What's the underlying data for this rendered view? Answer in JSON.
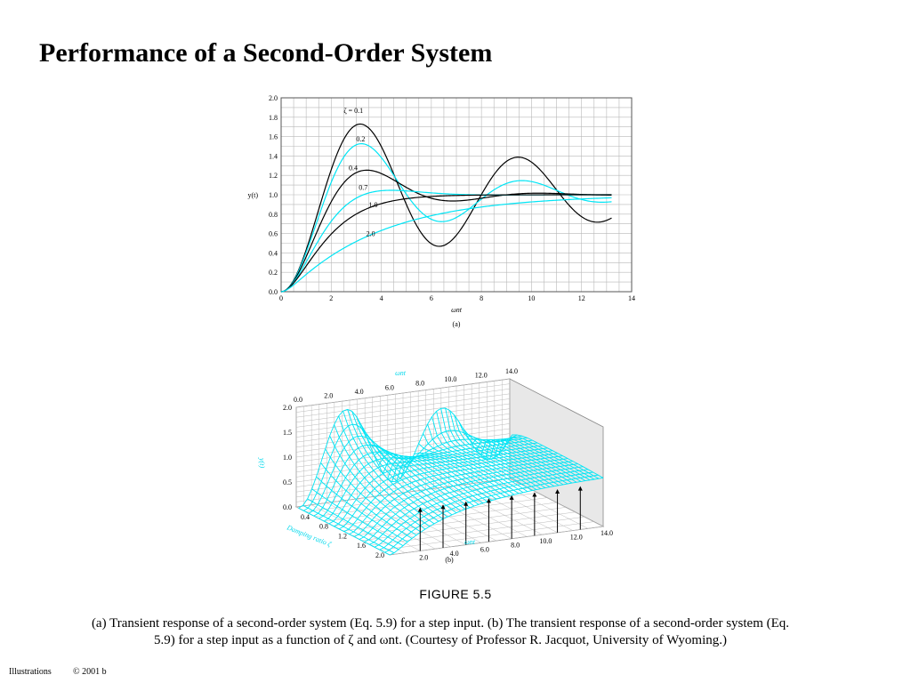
{
  "slide": {
    "title": "Performance of a Second-Order System"
  },
  "figure": {
    "label": "FIGURE 5.5",
    "caption": "(a) Transient response of a second-order system (Eq. 5.9) for a step input. (b) The transient response of a second-order system (Eq. 5.9) for a step input as a function of ζ and ωnt. (Courtesy of Professor R. Jacquot, University of Wyoming.)"
  },
  "footer": {
    "left": "Illustrations",
    "right": "© 2001 b"
  },
  "colors": {
    "black_curve": "#000000",
    "cyan_curve": "#00e5f5",
    "grid": "#b8b8b8"
  },
  "chart_data": [
    {
      "type": "line",
      "panel_label": "(a)",
      "xlabel": "ωnt",
      "ylabel": "y(t)",
      "xlim": [
        0,
        14
      ],
      "ylim": [
        0,
        2.0
      ],
      "x_ticks": [
        "0",
        "2",
        "4",
        "6",
        "8",
        "10",
        "12",
        "14"
      ],
      "y_ticks": [
        "0.0",
        "0.2",
        "0.4",
        "0.6",
        "0.8",
        "1.0",
        "1.2",
        "1.4",
        "1.6",
        "1.8",
        "2.0"
      ],
      "grid": true,
      "series": [
        {
          "name": "ζ = 0.1",
          "label": "ζ = 0.1",
          "zeta": 0.1,
          "color": "black"
        },
        {
          "name": "0.2",
          "label": "0.2",
          "zeta": 0.2,
          "color": "cyan"
        },
        {
          "name": "0.4",
          "label": "0.4",
          "zeta": 0.4,
          "color": "black"
        },
        {
          "name": "0.7",
          "label": "0.7",
          "zeta": 0.7,
          "color": "cyan"
        },
        {
          "name": "1.0",
          "label": "1.0",
          "zeta": 1.0,
          "color": "black"
        },
        {
          "name": "2.0",
          "label": "2.0",
          "zeta": 2.0,
          "color": "cyan"
        }
      ],
      "x_end": 13.2
    },
    {
      "type": "surface",
      "panel_label": "(b)",
      "zlabel": "y(t)",
      "xlabel": "ωnt",
      "ylabel": "Damping ratio ζ",
      "x_top_label": "ωnt",
      "x_ticks_top": [
        "0.0",
        "2.0",
        "4.0",
        "6.0",
        "8.0",
        "10.0",
        "12.0",
        "14.0"
      ],
      "x_ticks_bottom": [
        "2.0",
        "4.0",
        "6.0",
        "8.0",
        "10.0",
        "12.0",
        "14.0"
      ],
      "damping_ticks": [
        "0.4",
        "0.8",
        "1.2",
        "1.6",
        "2.0"
      ],
      "z_ticks": [
        "0.0",
        "0.5",
        "1.0",
        "1.5",
        "2.0"
      ],
      "zeta_range": [
        0.05,
        2.0
      ],
      "t_range": [
        0,
        14
      ],
      "zlim": [
        0,
        2.0
      ]
    }
  ]
}
